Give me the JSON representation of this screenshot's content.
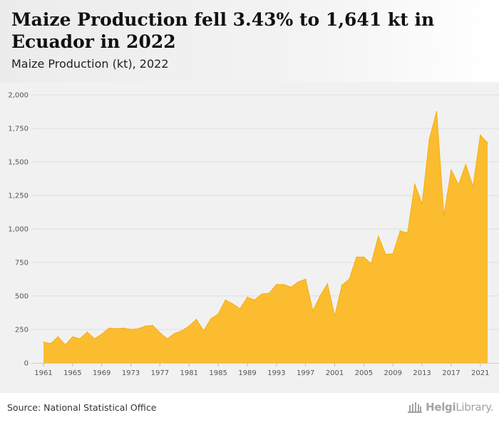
{
  "header": {
    "title": "Maize Production fell 3.43% to 1,641 kt in Ecuador in 2022",
    "subtitle": "Maize Production (kt), 2022"
  },
  "footer": {
    "source": "Source: National Statistical Office",
    "logo_bold": "Helgi",
    "logo_light": "Library."
  },
  "colors": {
    "area_fill": "#fbbd2f",
    "area_stroke": "#f5ad11",
    "grid": "#dddddd",
    "plot_background": "#f1f1f1"
  },
  "chart_data": {
    "type": "area",
    "title": "",
    "xlabel": "",
    "ylabel": "",
    "ylim": [
      0,
      2000
    ],
    "yticks": [
      0,
      250,
      500,
      750,
      1000,
      1250,
      1500,
      1750,
      2000
    ],
    "ytick_labels": [
      "0",
      "250",
      "500",
      "750",
      "1,000",
      "1,250",
      "1,500",
      "1,750",
      "2,000"
    ],
    "xticks": [
      1961,
      1965,
      1969,
      1973,
      1977,
      1981,
      1985,
      1989,
      1993,
      1997,
      2001,
      2005,
      2009,
      2013,
      2017,
      2021
    ],
    "grid": true,
    "legend": "none",
    "x": [
      1961,
      1962,
      1963,
      1964,
      1965,
      1966,
      1967,
      1968,
      1969,
      1970,
      1971,
      1972,
      1973,
      1974,
      1975,
      1976,
      1977,
      1978,
      1979,
      1980,
      1981,
      1982,
      1983,
      1984,
      1985,
      1986,
      1987,
      1988,
      1989,
      1990,
      1991,
      1992,
      1993,
      1994,
      1995,
      1996,
      1997,
      1998,
      1999,
      2000,
      2001,
      2002,
      2003,
      2004,
      2005,
      2006,
      2007,
      2008,
      2009,
      2010,
      2011,
      2012,
      2013,
      2014,
      2015,
      2016,
      2017,
      2018,
      2019,
      2020,
      2021,
      2022
    ],
    "values": [
      155,
      145,
      195,
      135,
      195,
      180,
      230,
      180,
      215,
      260,
      255,
      260,
      250,
      255,
      275,
      280,
      225,
      180,
      220,
      240,
      275,
      325,
      240,
      330,
      365,
      470,
      440,
      405,
      490,
      470,
      515,
      520,
      585,
      585,
      565,
      605,
      625,
      390,
      500,
      590,
      350,
      580,
      625,
      790,
      790,
      740,
      945,
      810,
      815,
      985,
      970,
      1335,
      1185,
      1670,
      1875,
      1100,
      1440,
      1330,
      1480,
      1315,
      1700,
      1641
    ]
  }
}
